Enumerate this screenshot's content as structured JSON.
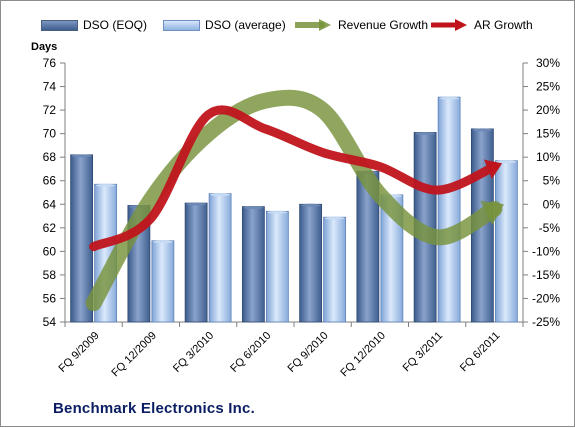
{
  "chart_data": {
    "type": "bar",
    "title": "",
    "ylabel": "Days",
    "categories": [
      "FQ 9/2009",
      "FQ 12/2009",
      "FQ 3/2010",
      "FQ 6/2010",
      "FQ 9/2010",
      "FQ 12/2010",
      "FQ 3/2011",
      "FQ 6/2011"
    ],
    "ylim": [
      54,
      76
    ],
    "yticks": [
      54,
      56,
      58,
      60,
      62,
      64,
      66,
      68,
      70,
      72,
      74,
      76
    ],
    "y2lim": [
      -25,
      30
    ],
    "y2ticks": [
      "-25%",
      "-20%",
      "-15%",
      "-10%",
      "-5%",
      "0%",
      "5%",
      "10%",
      "15%",
      "20%",
      "25%",
      "30%"
    ],
    "y2values": [
      -25,
      -20,
      -15,
      -10,
      -5,
      0,
      5,
      10,
      15,
      20,
      25,
      30
    ],
    "grid": false,
    "legend_position": "top",
    "series": [
      {
        "name": "DSO (EOQ)",
        "kind": "bar",
        "axis": "left",
        "color": "#4f6f9f",
        "values": [
          68.2,
          63.9,
          64.1,
          63.8,
          64.0,
          66.8,
          70.1,
          70.4
        ]
      },
      {
        "name": "DSO (average)",
        "kind": "bar",
        "axis": "left",
        "color": "#9fc0ea",
        "values": [
          65.7,
          60.9,
          64.9,
          63.4,
          62.9,
          64.8,
          73.1,
          67.7
        ]
      },
      {
        "name": "Revenue Growth",
        "kind": "line",
        "axis": "right",
        "color": "#77933c",
        "values": [
          -21,
          1,
          15,
          22,
          20,
          2,
          -7,
          -1
        ]
      },
      {
        "name": "AR Growth",
        "kind": "line",
        "axis": "right",
        "color": "#c0141c",
        "values": [
          -9,
          -3,
          19,
          16,
          11,
          8,
          3,
          8
        ]
      }
    ]
  },
  "caption": "Benchmark Electronics Inc."
}
